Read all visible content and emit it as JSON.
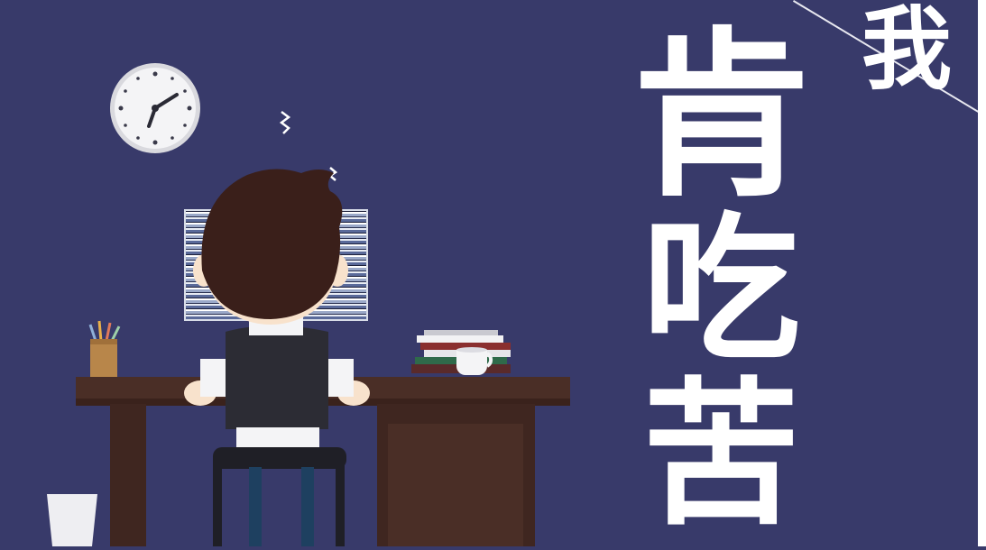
{
  "slogan": {
    "char_1": "我",
    "char_2": "肯",
    "char_3": "吃",
    "char_4": "苦"
  },
  "colors": {
    "background": "#383a6a",
    "desk": "#4a2e26",
    "hair": "#3a1f1a",
    "text": "#ffffff"
  },
  "icons": [
    "clock-icon",
    "person-at-desk",
    "computer-monitor",
    "pencil-cup",
    "book-stack",
    "coffee-cup",
    "trash-bin"
  ]
}
